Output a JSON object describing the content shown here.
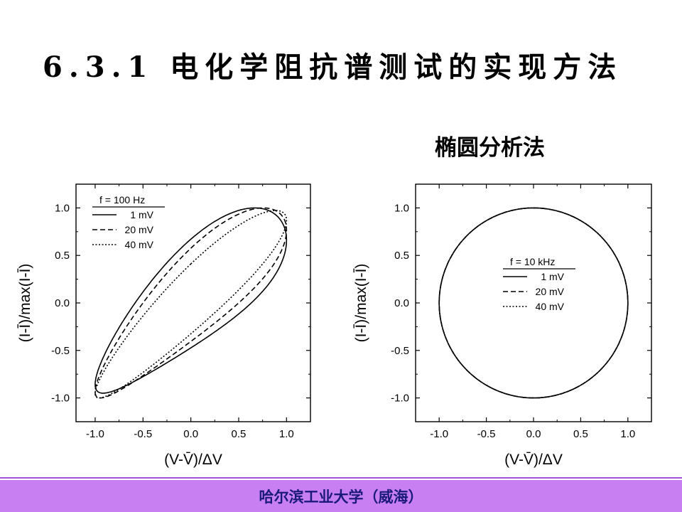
{
  "title": "6.3.1 电化学阻抗谱测试的实现方法",
  "subtitle": "椭圆分析法",
  "footer": "哈尔滨工业大学（威海）",
  "colors": {
    "footer_bg": "#c77ff2",
    "footer_text": "#1a1a7a",
    "divider": "#a050d0",
    "ink": "#000000"
  },
  "chart_data": [
    {
      "type": "line",
      "name": "ellipse-100hz",
      "xlabel": "(V-V̄)/ΔV",
      "ylabel": "(I-Ī)/max(I-Ī)",
      "xlim": [
        -1.2,
        1.25
      ],
      "ylim": [
        -1.25,
        1.25
      ],
      "xticks": [
        -1.0,
        -0.5,
        0.0,
        0.5,
        1.0
      ],
      "yticks": [
        -1.0,
        -0.5,
        0.0,
        0.5,
        1.0
      ],
      "tick_labels_x": [
        "-1.0",
        "-0.5",
        "0.0",
        "0.5",
        "1.0"
      ],
      "tick_labels_y": [
        "-1.0",
        "-0.5",
        "0.0",
        "0.5",
        "1.0"
      ],
      "legend_title": "f = 100 Hz",
      "legend_position": "top-left",
      "series": [
        {
          "name": "1 mV",
          "dash": "solid",
          "phi_deg": 37,
          "harm_amp": 0.12,
          "harm_phase_deg": 60
        },
        {
          "name": "20 mV",
          "dash": "dashed",
          "phi_deg": 30,
          "harm_amp": 0.1,
          "harm_phase_deg": 60
        },
        {
          "name": "40 mV",
          "dash": "dotted",
          "phi_deg": 22,
          "harm_amp": 0.05,
          "harm_phase_deg": 60
        }
      ]
    },
    {
      "type": "line",
      "name": "circle-10khz",
      "xlabel": "(V-V̄)/ΔV",
      "ylabel": "(I-Ī)/max(I-Ī)",
      "xlim": [
        -1.25,
        1.25
      ],
      "ylim": [
        -1.25,
        1.25
      ],
      "xticks": [
        -1.0,
        -0.5,
        0.0,
        0.5,
        1.0
      ],
      "yticks": [
        -1.0,
        -0.5,
        0.0,
        0.5,
        1.0
      ],
      "tick_labels_x": [
        "-1.0",
        "-0.5",
        "0.0",
        "0.5",
        "1.0"
      ],
      "tick_labels_y": [
        "-1.0",
        "-0.5",
        "0.0",
        "0.5",
        "1.0"
      ],
      "legend_title": "f = 10 kHz",
      "legend_position": "center",
      "series": [
        {
          "name": "1 mV",
          "dash": "solid",
          "phi_deg": 90,
          "harm_amp": 0,
          "harm_phase_deg": 0
        },
        {
          "name": "20 mV",
          "dash": "dashed",
          "phi_deg": 90,
          "harm_amp": 0,
          "harm_phase_deg": 0
        },
        {
          "name": "40 mV",
          "dash": "dotted",
          "phi_deg": 90,
          "harm_amp": 0,
          "harm_phase_deg": 0
        }
      ]
    }
  ]
}
